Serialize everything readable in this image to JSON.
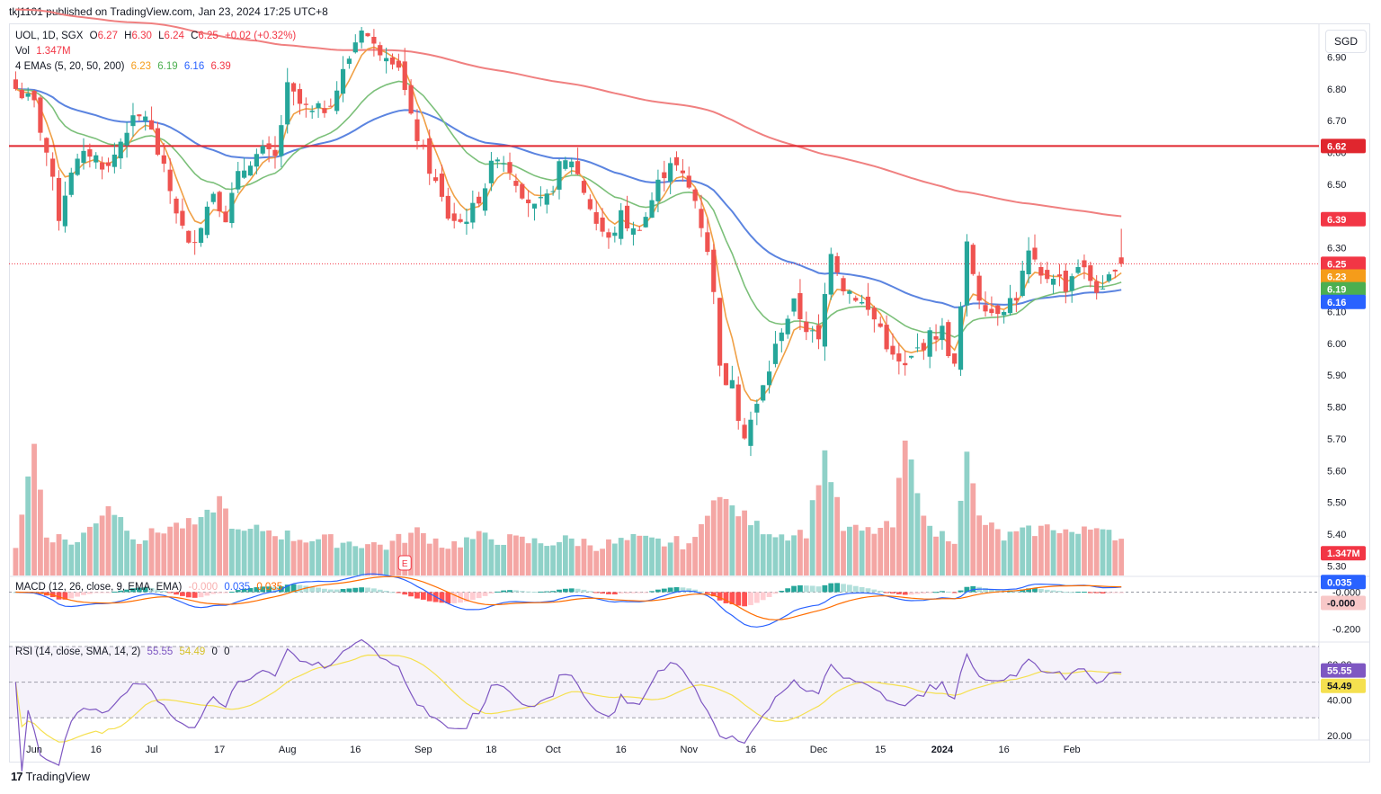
{
  "publisher": "tkj1101 published on TradingView.com, Jan 23, 2024 17:25 UTC+8",
  "currency_button": "SGD",
  "footer": {
    "logo": "17",
    "brand": "TradingView"
  },
  "legend": {
    "symbol": "UOL, 1D, SGX",
    "o_label": "O",
    "o_val": "6.27",
    "h_label": "H",
    "h_val": "6.30",
    "l_label": "L",
    "l_val": "6.24",
    "c_label": "C",
    "c_val": "6.25",
    "change": "+0.02 (+0.32%)",
    "vol_label": "Vol",
    "vol_val": "1.347M",
    "ema_label": "4 EMAs (5, 20, 50, 200)",
    "ema_vals": [
      "6.23",
      "6.19",
      "6.16",
      "6.39"
    ],
    "macd_label": "MACD (12, 26, close, 9, EMA, EMA)",
    "macd_vals": [
      "-0.000",
      "0.035",
      "0.035"
    ],
    "rsi_label": "RSI (14, close, SMA, 14, 2)",
    "rsi_vals": [
      "55.55",
      "54.49",
      "0",
      "0"
    ]
  },
  "colors": {
    "up": "#26a69a",
    "down": "#ef5350",
    "vol_up": "#8fd1c8",
    "vol_down": "#f4a6a4",
    "ema5": "#f0a046",
    "ema20": "#7cc07a",
    "ema50": "#5b84e0",
    "ema200": "#f08080",
    "hline": "#e0262e",
    "macd": "#2962ff",
    "signal": "#ff6d00",
    "rsi": "#7e57c2",
    "rsi_ma": "#f5e04f"
  },
  "price_axis": [
    "6.90",
    "6.80",
    "6.70",
    "6.60",
    "6.50",
    "6.40",
    "6.30",
    "6.20",
    "6.10",
    "6.00",
    "5.90",
    "5.80",
    "5.70",
    "5.60",
    "5.50",
    "5.40",
    "5.30"
  ],
  "price_badges": [
    {
      "text": "6.62",
      "color": "#e0262e",
      "price": 6.62
    },
    {
      "text": "6.39",
      "color": "#f23645",
      "price": 6.39
    },
    {
      "text": "6.25",
      "color": "#f23645",
      "price": 6.25
    },
    {
      "text": "6.23",
      "color": "#f59c1a",
      "price": 6.21
    },
    {
      "text": "6.19",
      "color": "#4caf50",
      "price": 6.17
    },
    {
      "text": "6.16",
      "color": "#2962ff",
      "price": 6.13
    },
    {
      "text": "1.347M",
      "color": "#f23645",
      "price": 5.34
    }
  ],
  "macd_axis": [
    "-0.000",
    "-0.200"
  ],
  "macd_badges": [
    {
      "text": "0.035",
      "color": "#2962ff"
    },
    {
      "text": "-0.000",
      "color": "#f8c8c8"
    }
  ],
  "rsi_axis": [
    "60.00",
    "40.00",
    "20.00"
  ],
  "rsi_badges": [
    {
      "text": "55.55",
      "color": "#7e57c2"
    },
    {
      "text": "54.49",
      "color": "#f5e04f"
    }
  ],
  "x_axis": [
    {
      "label": "Jun",
      "bold": false
    },
    {
      "label": "16",
      "bold": false
    },
    {
      "label": "Jul",
      "bold": false
    },
    {
      "label": "17",
      "bold": false
    },
    {
      "label": "Aug",
      "bold": false
    },
    {
      "label": "16",
      "bold": false
    },
    {
      "label": "Sep",
      "bold": false
    },
    {
      "label": "18",
      "bold": false
    },
    {
      "label": "Oct",
      "bold": false
    },
    {
      "label": "16",
      "bold": false
    },
    {
      "label": "Nov",
      "bold": false
    },
    {
      "label": "16",
      "bold": false
    },
    {
      "label": "Dec",
      "bold": false
    },
    {
      "label": "15",
      "bold": false
    },
    {
      "label": "2024",
      "bold": true
    },
    {
      "label": "16",
      "bold": false
    },
    {
      "label": "Feb",
      "bold": false
    }
  ],
  "earnings_marker": "E",
  "chart_data": {
    "type": "candlestick",
    "symbol": "UOL",
    "interval": "1D",
    "exchange": "SGX",
    "currency": "SGD",
    "close_anchors": [
      [
        0,
        6.8
      ],
      [
        3,
        6.75
      ],
      [
        5,
        6.6
      ],
      [
        7,
        6.4
      ],
      [
        9,
        6.55
      ],
      [
        12,
        6.6
      ],
      [
        15,
        6.55
      ],
      [
        18,
        6.68
      ],
      [
        21,
        6.72
      ],
      [
        23,
        6.6
      ],
      [
        26,
        6.42
      ],
      [
        28,
        6.3
      ],
      [
        30,
        6.38
      ],
      [
        32,
        6.48
      ],
      [
        34,
        6.4
      ],
      [
        36,
        6.52
      ],
      [
        38,
        6.58
      ],
      [
        40,
        6.6
      ],
      [
        42,
        6.58
      ],
      [
        44,
        6.8
      ],
      [
        46,
        6.75
      ],
      [
        48,
        6.72
      ],
      [
        50,
        6.74
      ],
      [
        52,
        6.8
      ],
      [
        54,
        6.9
      ],
      [
        56,
        7.0
      ],
      [
        58,
        6.93
      ],
      [
        60,
        6.92
      ],
      [
        62,
        6.88
      ],
      [
        64,
        6.7
      ],
      [
        66,
        6.6
      ],
      [
        68,
        6.5
      ],
      [
        70,
        6.4
      ],
      [
        72,
        6.38
      ],
      [
        74,
        6.42
      ],
      [
        76,
        6.5
      ],
      [
        78,
        6.6
      ],
      [
        80,
        6.55
      ],
      [
        82,
        6.48
      ],
      [
        84,
        6.42
      ],
      [
        86,
        6.45
      ],
      [
        88,
        6.55
      ],
      [
        90,
        6.58
      ],
      [
        92,
        6.48
      ],
      [
        94,
        6.38
      ],
      [
        96,
        6.32
      ],
      [
        98,
        6.4
      ],
      [
        100,
        6.35
      ],
      [
        102,
        6.4
      ],
      [
        104,
        6.5
      ],
      [
        106,
        6.58
      ],
      [
        108,
        6.52
      ],
      [
        110,
        6.45
      ],
      [
        112,
        6.3
      ],
      [
        113,
        6.15
      ],
      [
        114,
        5.95
      ],
      [
        115,
        5.85
      ],
      [
        116,
        5.9
      ],
      [
        117,
        5.78
      ],
      [
        118,
        5.72
      ],
      [
        120,
        5.8
      ],
      [
        122,
        5.92
      ],
      [
        124,
        6.05
      ],
      [
        126,
        6.12
      ],
      [
        128,
        6.05
      ],
      [
        130,
        6.0
      ],
      [
        132,
        6.3
      ],
      [
        134,
        6.18
      ],
      [
        136,
        6.15
      ],
      [
        138,
        6.1
      ],
      [
        140,
        6.05
      ],
      [
        142,
        5.95
      ],
      [
        144,
        5.92
      ],
      [
        146,
        5.98
      ],
      [
        148,
        6.02
      ],
      [
        150,
        6.04
      ],
      [
        152,
        5.92
      ],
      [
        154,
        6.3
      ],
      [
        156,
        6.15
      ],
      [
        158,
        6.1
      ],
      [
        160,
        6.12
      ],
      [
        162,
        6.15
      ],
      [
        164,
        6.28
      ],
      [
        166,
        6.2
      ],
      [
        168,
        6.22
      ],
      [
        170,
        6.18
      ],
      [
        172,
        6.25
      ],
      [
        174,
        6.2
      ],
      [
        176,
        6.15
      ],
      [
        178,
        6.25
      ],
      [
        179,
        6.25
      ]
    ],
    "volume_anchors_millions": [
      [
        0,
        1.1
      ],
      [
        3,
        4.8
      ],
      [
        5,
        1.5
      ],
      [
        10,
        1.2
      ],
      [
        15,
        2.6
      ],
      [
        20,
        1.3
      ],
      [
        25,
        1.8
      ],
      [
        30,
        1.9
      ],
      [
        33,
        2.8
      ],
      [
        36,
        1.5
      ],
      [
        40,
        1.7
      ],
      [
        45,
        1.4
      ],
      [
        50,
        1.3
      ],
      [
        55,
        1.2
      ],
      [
        60,
        1.1
      ],
      [
        65,
        1.6
      ],
      [
        70,
        1.1
      ],
      [
        75,
        1.4
      ],
      [
        80,
        1.3
      ],
      [
        85,
        1.2
      ],
      [
        90,
        1.3
      ],
      [
        95,
        1.1
      ],
      [
        100,
        1.3
      ],
      [
        105,
        1.2
      ],
      [
        110,
        1.2
      ],
      [
        113,
        3.0
      ],
      [
        116,
        2.5
      ],
      [
        120,
        1.8
      ],
      [
        124,
        1.5
      ],
      [
        128,
        1.6
      ],
      [
        131,
        4.5
      ],
      [
        134,
        1.7
      ],
      [
        138,
        1.6
      ],
      [
        142,
        1.8
      ],
      [
        144,
        4.9
      ],
      [
        148,
        1.6
      ],
      [
        152,
        1.4
      ],
      [
        154,
        4.4
      ],
      [
        156,
        2.1
      ],
      [
        160,
        1.4
      ],
      [
        164,
        1.6
      ],
      [
        168,
        1.8
      ],
      [
        172,
        1.5
      ],
      [
        176,
        1.9
      ],
      [
        179,
        1.347
      ]
    ],
    "ema_latest": {
      "EMA5": 6.23,
      "EMA20": 6.19,
      "EMA50": 6.16,
      "EMA200": 6.39
    },
    "horizontal_line": 6.62,
    "last": {
      "open": 6.27,
      "high": 6.3,
      "low": 6.24,
      "close": 6.25,
      "change": 0.02,
      "change_pct": 0.32,
      "volume": "1.347M"
    },
    "ylim": [
      5.27,
      7.0
    ],
    "macd_ylim": [
      -0.26,
      0.08
    ],
    "rsi_ylim": [
      18,
      72
    ],
    "rsi_bands": [
      30,
      50,
      70
    ],
    "x_ticks_index": [
      {
        "label": "Jun",
        "i": 3
      },
      {
        "label": "16",
        "i": 13
      },
      {
        "label": "Jul",
        "i": 22
      },
      {
        "label": "17",
        "i": 33
      },
      {
        "label": "Aug",
        "i": 44
      },
      {
        "label": "16",
        "i": 55
      },
      {
        "label": "Sep",
        "i": 66
      },
      {
        "label": "18",
        "i": 77
      },
      {
        "label": "Oct",
        "i": 87
      },
      {
        "label": "16",
        "i": 98
      },
      {
        "label": "Nov",
        "i": 109
      },
      {
        "label": "16",
        "i": 119
      },
      {
        "label": "Dec",
        "i": 130
      },
      {
        "label": "15",
        "i": 140
      },
      {
        "label": "2024",
        "i": 150
      },
      {
        "label": "16",
        "i": 160
      },
      {
        "label": "Feb",
        "i": 171
      }
    ]
  }
}
